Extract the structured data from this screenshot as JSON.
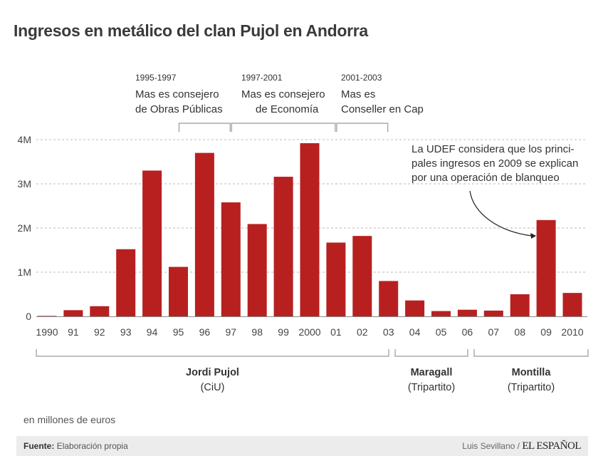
{
  "title": "Ingresos en metálico del clan Pujol en Andorra",
  "chart_data": {
    "type": "bar",
    "title": "Ingresos en metálico del clan Pujol en Andorra",
    "xlabel": "",
    "ylabel": "en millones de euros",
    "ylim": [
      0,
      4
    ],
    "yticks": [
      0,
      1,
      2,
      3,
      4
    ],
    "ytick_labels": [
      "0",
      "1M",
      "2M",
      "3M",
      "4M"
    ],
    "grid": true,
    "categories": [
      "1990",
      "91",
      "92",
      "93",
      "94",
      "95",
      "96",
      "97",
      "98",
      "99",
      "2000",
      "01",
      "02",
      "03",
      "04",
      "05",
      "06",
      "07",
      "08",
      "09",
      "2010"
    ],
    "values": [
      0.01,
      0.14,
      0.23,
      1.52,
      3.3,
      1.12,
      3.7,
      2.58,
      2.09,
      3.16,
      3.92,
      1.67,
      1.82,
      0.8,
      0.36,
      0.12,
      0.15,
      0.13,
      0.5,
      2.18,
      0.53
    ],
    "bar_color": "#b82020",
    "periods": [
      {
        "years": "1995-1997",
        "line1": "Mas es consejero",
        "line2": "de Obras Públicas",
        "from": "95",
        "to": "97"
      },
      {
        "years": "1997-2001",
        "line1": "Mas es consejero",
        "line2": "de Economía",
        "from": "97",
        "to": "01"
      },
      {
        "years": "2001-2003",
        "line1": "Mas es",
        "line2": "Conseller en Cap",
        "from": "01",
        "to": "03"
      }
    ],
    "annotation": {
      "lines": [
        "La UDEF considera que los princi-",
        "pales ingresos en 2009 se explican",
        "por una operación de blanqueo"
      ],
      "target": "09"
    },
    "eras": [
      {
        "name": "Jordi Pujol",
        "party": "(CiU)",
        "from": "1990",
        "to": "03"
      },
      {
        "name": "Maragall",
        "party": "(Tripartito)",
        "from": "03",
        "to": "06"
      },
      {
        "name": "Montilla",
        "party": "(Tripartito)",
        "from": "06",
        "to": "2010"
      }
    ]
  },
  "unit_note": "en millones de euros",
  "footer": {
    "source_label": "Fuente:",
    "source_value": "Elaboración propia",
    "author": "Luis Sevillano /",
    "brand": "EL ESPAÑOL"
  }
}
